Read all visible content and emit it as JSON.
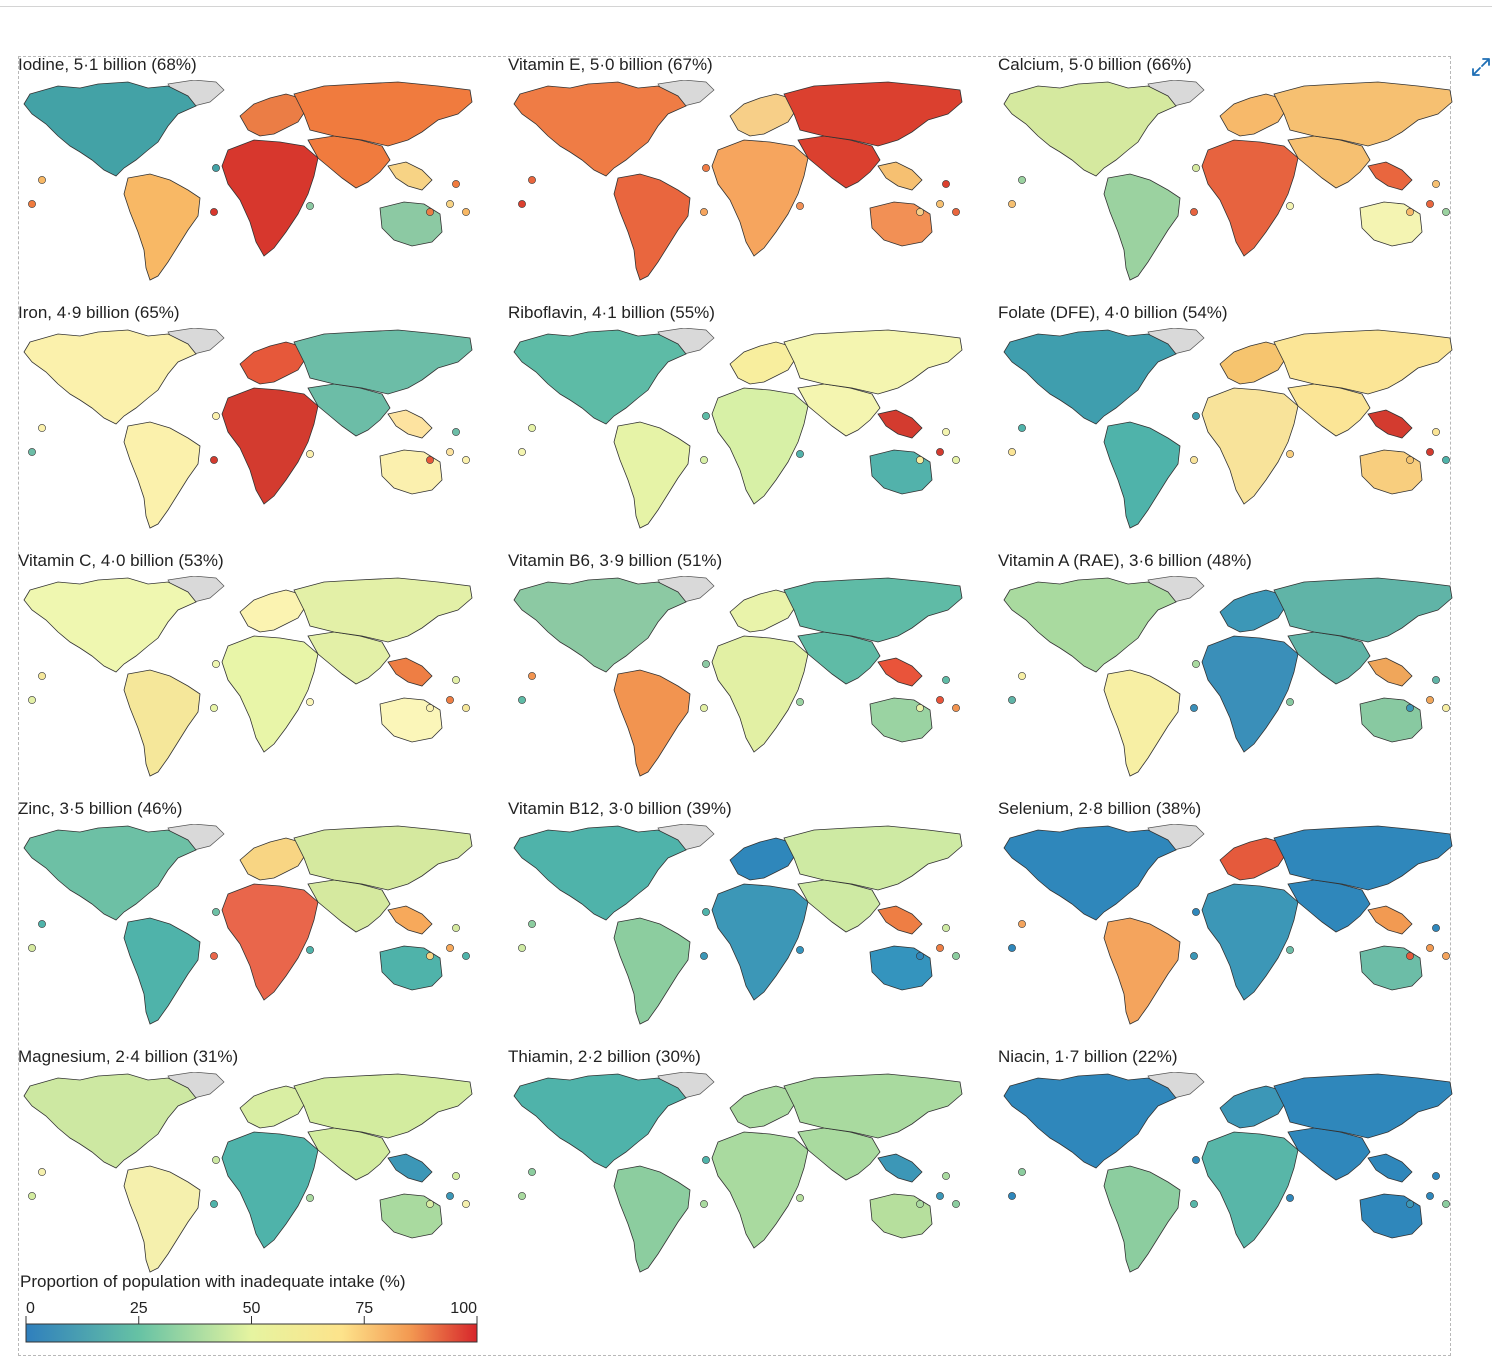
{
  "panels": [
    {
      "title": "Iodine, 5·1 billion (68%)",
      "ramp": [
        "#43a2a6",
        "#f8b865",
        "#eb7d45",
        "#d7372d",
        "#f07b3e",
        "#f7d385",
        "#8cc9a3"
      ]
    },
    {
      "title": "Vitamin E, 5·0 billion (67%)",
      "ramp": [
        "#ef7c45",
        "#e9663e",
        "#f7cf88",
        "#f6a55e",
        "#db402f",
        "#f6c071",
        "#f29055"
      ]
    },
    {
      "title": "Calcium, 5·0 billion (66%)",
      "ramp": [
        "#d5e99f",
        "#9bd2a0",
        "#f7b96a",
        "#e7633f",
        "#f6c071",
        "#e9663e",
        "#f4f4b2"
      ]
    },
    {
      "title": "Iron, 4·9 billion (65%)",
      "ramp": [
        "#fbf1ac",
        "#fbf1ac",
        "#e6583a",
        "#d33b2f",
        "#6cbda7",
        "#fde3a0",
        "#fbf0ae"
      ]
    },
    {
      "title": "Riboflavin, 4·1 billion (55%)",
      "ramp": [
        "#5dbba6",
        "#e6f3a7",
        "#f8ee9e",
        "#d7f0a6",
        "#f4f5b0",
        "#d33b2f",
        "#52b2ab"
      ]
    },
    {
      "title": "Folate (DFE), 4·0 billion (54%)",
      "ramp": [
        "#3f9eae",
        "#4fb3aa",
        "#f6c46e",
        "#f8e39a",
        "#fbe596",
        "#d33b2f",
        "#f8ce7e"
      ]
    },
    {
      "title": "Vitamin C, 4·0 billion (53%)",
      "ramp": [
        "#eff7b0",
        "#f5e79a",
        "#fbf3b1",
        "#e8f5a8",
        "#e3f0a7",
        "#ee7e44",
        "#fbf6b9"
      ]
    },
    {
      "title": "Vitamin B6, 3·9 billion (51%)",
      "ramp": [
        "#8cc9a3",
        "#f29450",
        "#e9f3aa",
        "#e2f0a4",
        "#5fbba6",
        "#e9543a",
        "#9ad3a2"
      ]
    },
    {
      "title": "Vitamin A (RAE), 3·6 billion (48%)",
      "ramp": [
        "#a9da9f",
        "#f7efa4",
        "#3c97b7",
        "#3a8fb9",
        "#60b4a7",
        "#f0a65a",
        "#88c9a1"
      ]
    },
    {
      "title": "Zinc, 3·5 billion (46%)",
      "ramp": [
        "#6dc0a5",
        "#4fb3aa",
        "#f8d583",
        "#e9664b",
        "#d5e99f",
        "#f7a95b",
        "#4fb3aa"
      ]
    },
    {
      "title": "Vitamin B12, 3·0 billion (39%)",
      "ramp": [
        "#4fb3aa",
        "#8ccd9f",
        "#2f87bb",
        "#3c97b7",
        "#ceeaa3",
        "#ee7e44",
        "#3494be"
      ]
    },
    {
      "title": "Selenium, 2·8 billion (38%)",
      "ramp": [
        "#2f87bb",
        "#f4a45d",
        "#e55a3c",
        "#3c97b7",
        "#2f87bb",
        "#f29a52",
        "#6cbda7"
      ]
    },
    {
      "title": "Magnesium, 2·4 billion (31%)",
      "ramp": [
        "#cde8a2",
        "#f5f0ad",
        "#d9eea3",
        "#4fb3aa",
        "#d3ec9f",
        "#3c97b7",
        "#a9da9f"
      ]
    },
    {
      "title": "Thiamin, 2·2 billion (30%)",
      "ramp": [
        "#4fb3aa",
        "#8ccd9f",
        "#a9da9f",
        "#a9da9f",
        "#a9da9f",
        "#3c97b7",
        "#b6df9d"
      ]
    },
    {
      "title": "Niacin, 1·7 billion (22%)",
      "ramp": [
        "#2f87bb",
        "#8ccd9f",
        "#3c97b7",
        "#58b6a8",
        "#2f87bb",
        "#2f87bb",
        "#2f87bb"
      ]
    }
  ],
  "legend": {
    "title": "Proportion of population with inadequate intake (%)",
    "ticks": [
      "0",
      "25",
      "50",
      "75",
      "100"
    ],
    "stops": [
      {
        "offset": 0,
        "color": "#2f7fbd"
      },
      {
        "offset": 0.25,
        "color": "#66c2a4"
      },
      {
        "offset": 0.5,
        "color": "#e6f4a0"
      },
      {
        "offset": 0.7,
        "color": "#fde38b"
      },
      {
        "offset": 0.85,
        "color": "#f39a52"
      },
      {
        "offset": 1,
        "color": "#d7262b"
      }
    ]
  },
  "icons": {
    "expand": "expand-icon"
  },
  "colors": {
    "accent": "#1f6fb5",
    "greenland": "#d9d9d9",
    "border": "#333333"
  }
}
